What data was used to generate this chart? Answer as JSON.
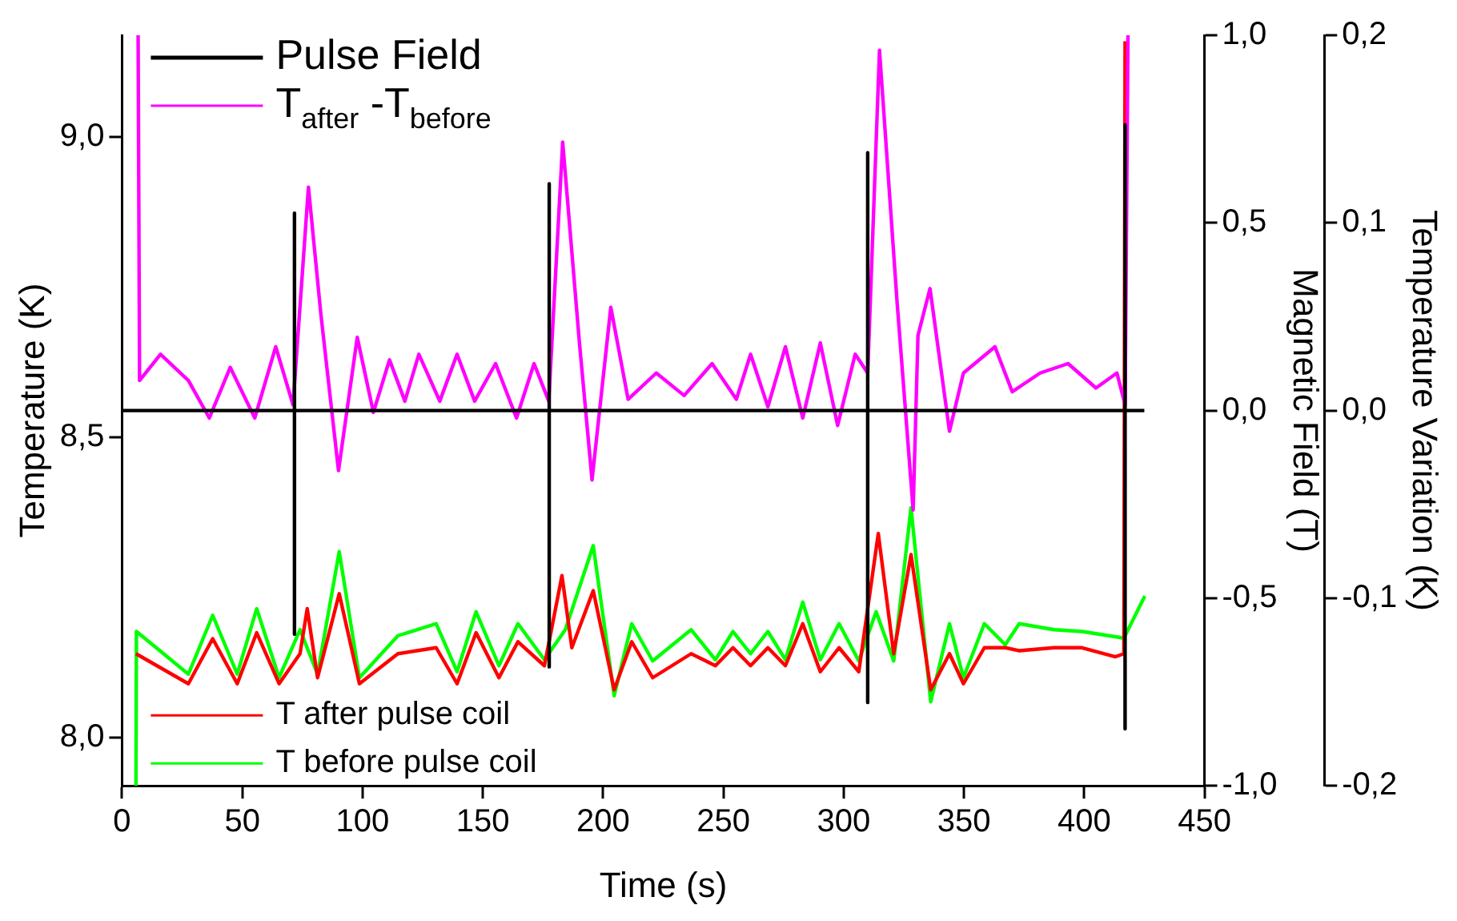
{
  "chart_data": {
    "type": "line",
    "xlabel": "Time (s)",
    "ylabel": "Temperature (K)",
    "y2label": "Magnetic Field (T)",
    "y3label": "Temperature Variation (K)",
    "xlim": [
      0,
      450
    ],
    "xticks": [
      0,
      50,
      100,
      150,
      200,
      250,
      300,
      350,
      400,
      450
    ],
    "ylim": [
      7.92,
      9.17
    ],
    "yticks": [
      {
        "value": 8.0,
        "label": "8,0"
      },
      {
        "value": 8.5,
        "label": "8,5"
      },
      {
        "value": 9.0,
        "label": "9,0"
      }
    ],
    "y2lim": [
      -1,
      1
    ],
    "y2ticks": [
      {
        "value": -1,
        "label": "-1,0"
      },
      {
        "value": -0.5,
        "label": "-0,5"
      },
      {
        "value": 0,
        "label": "0,0"
      },
      {
        "value": 0.5,
        "label": "0,5"
      },
      {
        "value": 1,
        "label": "1,0"
      }
    ],
    "y3lim": [
      -0.2,
      0.2
    ],
    "y3ticks": [
      {
        "value": -0.2,
        "label": "-0,2"
      },
      {
        "value": -0.1,
        "label": "-0,1"
      },
      {
        "value": 0,
        "label": "0,0"
      },
      {
        "value": 0.1,
        "label": "0,1"
      },
      {
        "value": 0.2,
        "label": "0,2"
      }
    ],
    "legend": "top left",
    "grid": false,
    "series": [
      {
        "name": "Pulse Field",
        "color": "#000000",
        "axis": "y2",
        "x": [
          0,
          71.7,
          71.7,
          71.7,
          71.7,
          177.6,
          177.6,
          177.6,
          177.6,
          310,
          310,
          310,
          310,
          417,
          417,
          417,
          417,
          425
        ],
        "values": [
          0,
          0,
          0.526,
          -0.596,
          0,
          0,
          0.604,
          -0.683,
          0,
          0,
          0.687,
          -0.778,
          0,
          0,
          0.761,
          -0.848,
          0,
          0
        ]
      },
      {
        "name": "T$_{after}$ -T$_{before}$",
        "color": "#ff00ff",
        "axis": "y3",
        "x": [
          6.7,
          7.3,
          16.0,
          27.6,
          36.3,
          45.0,
          55.2,
          63.9,
          71.1,
          77.5,
          82.7,
          90.0,
          97.8,
          104.5,
          111.2,
          117.6,
          123.4,
          132.1,
          139.3,
          146.6,
          155.3,
          164.0,
          171.3,
          177.4,
          183.2,
          190.1,
          195.4,
          203.2,
          210.4,
          222.1,
          233.7,
          245.3,
          255.4,
          261.3,
          268.5,
          275.8,
          283.0,
          290.3,
          297.5,
          304.8,
          310.0,
          314.9,
          322.2,
          325.1,
          328.9,
          330.9,
          335.9,
          344.0,
          349.8,
          362.9,
          370.1,
          381.7,
          393.3,
          404.9,
          413.6,
          417.0,
          418.2
        ],
        "values": [
          0.2,
          0.016,
          0.03,
          0.016,
          -0.004,
          0.023,
          -0.004,
          0.034,
          0.003,
          0.119,
          0.051,
          -0.032,
          0.039,
          -0.001,
          0.027,
          0.005,
          0.03,
          0.005,
          0.03,
          0.005,
          0.025,
          -0.004,
          0.025,
          0.005,
          0.143,
          0.037,
          -0.037,
          0.055,
          0.006,
          0.02,
          0.008,
          0.025,
          0.006,
          0.03,
          0.002,
          0.034,
          -0.004,
          0.036,
          -0.008,
          0.03,
          0.02,
          0.192,
          0.058,
          0.01,
          -0.053,
          0.04,
          0.065,
          -0.011,
          0.02,
          0.034,
          0.01,
          0.02,
          0.025,
          0.012,
          0.02,
          0.003,
          0.2
        ]
      },
      {
        "name": "T after pulse coil",
        "color": "#ff0000",
        "x": [
          5.8,
          27.6,
          37.7,
          47.9,
          56.0,
          65.3,
          74.0,
          77.0,
          81.3,
          90.3,
          98.7,
          114.7,
          130.6,
          139.3,
          147.2,
          156.7,
          164.6,
          175.6,
          182.9,
          187.0,
          195.9,
          204.6,
          211.9,
          220.6,
          236.6,
          246.7,
          254.0,
          261.3,
          268.5,
          275.8,
          283.0,
          290.3,
          298.1,
          306.3,
          314.4,
          320.8,
          328.0,
          336.2,
          344.0,
          349.8,
          358.5,
          367.2,
          373.0,
          387.5,
          399.1,
          413.0,
          416.5,
          417.0
        ],
        "values": [
          8.14,
          8.09,
          8.165,
          8.09,
          8.175,
          8.09,
          8.14,
          8.215,
          8.1,
          8.24,
          8.09,
          8.14,
          8.15,
          8.09,
          8.175,
          8.1,
          8.16,
          8.12,
          8.27,
          8.15,
          8.245,
          8.08,
          8.16,
          8.1,
          8.14,
          8.12,
          8.15,
          8.12,
          8.15,
          8.12,
          8.19,
          8.11,
          8.15,
          8.11,
          8.34,
          8.14,
          8.305,
          8.08,
          8.14,
          8.09,
          8.15,
          8.15,
          8.145,
          8.15,
          8.15,
          8.135,
          8.14,
          9.16
        ]
      },
      {
        "name": "T before pulse coil",
        "color": "#00ff00",
        "x": [
          5.8,
          6.0,
          27.6,
          37.7,
          47.9,
          56.0,
          65.3,
          74.0,
          81.3,
          90.3,
          98.7,
          114.7,
          130.6,
          139.3,
          147.2,
          156.7,
          164.6,
          175.6,
          184.3,
          195.9,
          204.6,
          211.9,
          220.6,
          236.6,
          246.7,
          254.0,
          261.3,
          268.5,
          275.8,
          283.0,
          290.3,
          298.1,
          306.3,
          313.5,
          320.8,
          328.0,
          336.2,
          344.0,
          349.8,
          358.5,
          367.2,
          373.0,
          387.5,
          399.1,
          416.5,
          425.2
        ],
        "values": [
          7.92,
          8.177,
          8.106,
          8.204,
          8.106,
          8.215,
          8.1,
          8.18,
          8.106,
          8.31,
          8.1,
          8.17,
          8.19,
          8.11,
          8.21,
          8.12,
          8.19,
          8.13,
          8.18,
          8.32,
          8.07,
          8.19,
          8.128,
          8.18,
          8.13,
          8.177,
          8.14,
          8.177,
          8.13,
          8.226,
          8.13,
          8.19,
          8.128,
          8.21,
          8.128,
          8.383,
          8.06,
          8.19,
          8.1,
          8.19,
          8.155,
          8.19,
          8.18,
          8.177,
          8.166,
          8.236
        ]
      }
    ]
  }
}
